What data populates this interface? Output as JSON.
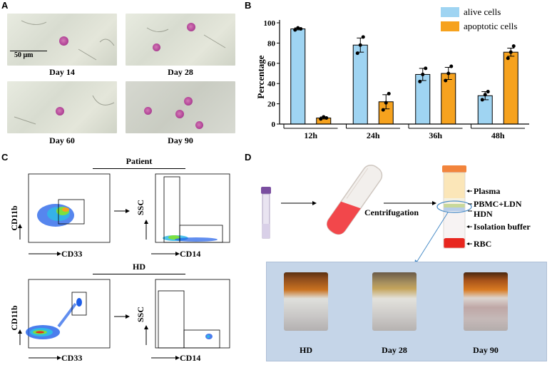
{
  "panels": {
    "a": "A",
    "b": "B",
    "c": "C",
    "d": "D"
  },
  "panel_a": {
    "scale_bar": "50 μm",
    "images": [
      {
        "label": "Day 14"
      },
      {
        "label": "Day 28"
      },
      {
        "label": "Day 60"
      },
      {
        "label": "Day 90"
      }
    ]
  },
  "chart_data": {
    "type": "bar",
    "categories": [
      "12h",
      "24h",
      "36h",
      "48h"
    ],
    "series": [
      {
        "name": "alive cells",
        "color": "#9fd4f2",
        "values": [
          94,
          78,
          49,
          28
        ],
        "errors": [
          1,
          7,
          6,
          4
        ],
        "points": [
          [
            93,
            95,
            94
          ],
          [
            70,
            78,
            86
          ],
          [
            42,
            49,
            55
          ],
          [
            24,
            29,
            32
          ]
        ]
      },
      {
        "name": "apoptotic cells",
        "color": "#f6a21e",
        "values": [
          6,
          22,
          50,
          71
        ],
        "errors": [
          1,
          7,
          6,
          4
        ],
        "points": [
          [
            5,
            7,
            6
          ],
          [
            14,
            21,
            30
          ],
          [
            43,
            50,
            57
          ],
          [
            65,
            71,
            77
          ]
        ]
      }
    ],
    "ylabel": "Percentage",
    "ylim": [
      0,
      100
    ],
    "yticks": [
      0,
      20,
      40,
      60,
      80,
      100
    ],
    "legend": "top-right"
  },
  "panel_c": {
    "patient_title": "Patient",
    "hd_title": "HD",
    "x_markers": [
      "CD33",
      "CD14",
      "CD33",
      "CD14"
    ],
    "y_markers": [
      "CD11b",
      "SSC",
      "CD11b",
      "SSC"
    ]
  },
  "panel_d": {
    "centrifugation": "Centrifugation",
    "layers": [
      "Plasma",
      "PBMC+LDN",
      "HDN",
      "Isolation buffer",
      "RBC"
    ],
    "photos": [
      {
        "label": "HD"
      },
      {
        "label": "Day 28"
      },
      {
        "label": "Day 90"
      }
    ]
  }
}
